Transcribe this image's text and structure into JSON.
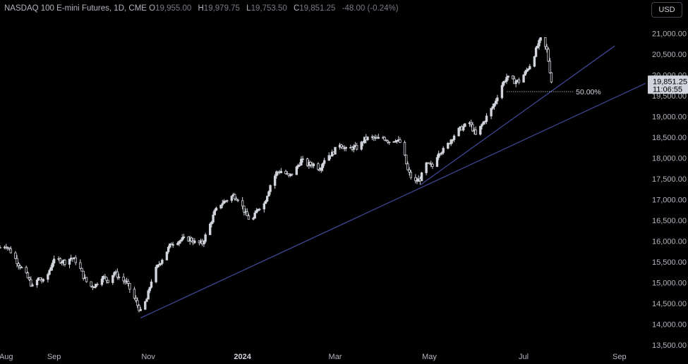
{
  "header": {
    "symbol": "NASDAQ 100 E-mini Futures, 1D, CME",
    "o_label": "O",
    "o_value": "19,955.00",
    "h_label": "H",
    "h_value": "19,979.75",
    "l_label": "L",
    "l_value": "19,753.50",
    "c_label": "C",
    "c_value": "19,851.25",
    "change": "-48.00 (-0.24%)"
  },
  "currency_button": "USD",
  "colors": {
    "background": "#000000",
    "candle": "#d1d4dc",
    "trendline": "#3d4691",
    "price_label": "#d1d4dc"
  },
  "chart_data": {
    "type": "candlestick",
    "title": "",
    "ylim": [
      13500,
      21500
    ],
    "y_ticks": [
      "13,500.00",
      "14,000.00",
      "14,500.00",
      "15,000.00",
      "15,500.00",
      "16,000.00",
      "16,500.00",
      "17,000.00",
      "17,500.00",
      "18,000.00",
      "18,500.00",
      "19,000.00",
      "19,500.00",
      "20,000.00",
      "20,500.00",
      "21,000.00"
    ],
    "y_tick_values": [
      13500,
      14000,
      14500,
      15000,
      15500,
      16000,
      16500,
      17000,
      17500,
      18000,
      18500,
      19000,
      19500,
      20000,
      20500,
      21000
    ],
    "x_ticks": [
      {
        "label": "Aug",
        "date": "2023-08-01"
      },
      {
        "label": "Sep",
        "date": "2023-09-01"
      },
      {
        "label": "Nov",
        "date": "2023-11-01"
      },
      {
        "label": "2024",
        "date": "2024-01-01",
        "bold": true
      },
      {
        "label": "Mar",
        "date": "2024-03-01"
      },
      {
        "label": "May",
        "date": "2024-05-01"
      },
      {
        "label": "Jul",
        "date": "2024-07-01"
      },
      {
        "label": "Sep",
        "date": "2024-09-01"
      }
    ],
    "x_range": [
      "2023-07-28",
      "2024-09-18"
    ],
    "price_path": [
      [
        "2023-07-28",
        15850
      ],
      [
        "2023-08-01",
        15900
      ],
      [
        "2023-08-05",
        15700
      ],
      [
        "2023-08-09",
        15450
      ],
      [
        "2023-08-13",
        15250
      ],
      [
        "2023-08-18",
        14900
      ],
      [
        "2023-08-22",
        15100
      ],
      [
        "2023-08-26",
        15000
      ],
      [
        "2023-08-31",
        15500
      ],
      [
        "2023-09-04",
        15550
      ],
      [
        "2023-09-08",
        15500
      ],
      [
        "2023-09-12",
        15600
      ],
      [
        "2023-09-16",
        15500
      ],
      [
        "2023-09-20",
        15150
      ],
      [
        "2023-09-24",
        14900
      ],
      [
        "2023-09-28",
        14950
      ],
      [
        "2023-10-02",
        15150
      ],
      [
        "2023-10-06",
        15050
      ],
      [
        "2023-10-10",
        15250
      ],
      [
        "2023-10-14",
        15100
      ],
      [
        "2023-10-18",
        15000
      ],
      [
        "2023-10-22",
        14700
      ],
      [
        "2023-10-27",
        14300
      ],
      [
        "2023-10-31",
        14600
      ],
      [
        "2023-11-04",
        15200
      ],
      [
        "2023-11-08",
        15450
      ],
      [
        "2023-11-12",
        15700
      ],
      [
        "2023-11-16",
        15950
      ],
      [
        "2023-11-20",
        16000
      ],
      [
        "2023-11-24",
        16050
      ],
      [
        "2023-11-28",
        16050
      ],
      [
        "2023-12-02",
        15950
      ],
      [
        "2023-12-06",
        15950
      ],
      [
        "2023-12-10",
        16300
      ],
      [
        "2023-12-14",
        16700
      ],
      [
        "2023-12-18",
        16900
      ],
      [
        "2023-12-22",
        17000
      ],
      [
        "2023-12-26",
        17100
      ],
      [
        "2023-12-30",
        17000
      ],
      [
        "2024-01-03",
        16650
      ],
      [
        "2024-01-07",
        16450
      ],
      [
        "2024-01-11",
        16800
      ],
      [
        "2024-01-15",
        16900
      ],
      [
        "2024-01-19",
        17350
      ],
      [
        "2024-01-23",
        17650
      ],
      [
        "2024-01-27",
        17700
      ],
      [
        "2024-01-31",
        17550
      ],
      [
        "2024-02-04",
        17700
      ],
      [
        "2024-02-08",
        17950
      ],
      [
        "2024-02-12",
        17850
      ],
      [
        "2024-02-16",
        17850
      ],
      [
        "2024-02-20",
        17750
      ],
      [
        "2024-02-24",
        18050
      ],
      [
        "2024-02-28",
        18100
      ],
      [
        "2024-03-04",
        18350
      ],
      [
        "2024-03-08",
        18200
      ],
      [
        "2024-03-12",
        18250
      ],
      [
        "2024-03-16",
        18250
      ],
      [
        "2024-03-20",
        18450
      ],
      [
        "2024-03-24",
        18500
      ],
      [
        "2024-03-28",
        18450
      ],
      [
        "2024-04-01",
        18500
      ],
      [
        "2024-04-05",
        18400
      ],
      [
        "2024-04-09",
        18450
      ],
      [
        "2024-04-13",
        18350
      ],
      [
        "2024-04-17",
        17700
      ],
      [
        "2024-04-21",
        17400
      ],
      [
        "2024-04-25",
        17500
      ],
      [
        "2024-04-29",
        17850
      ],
      [
        "2024-05-03",
        17800
      ],
      [
        "2024-05-07",
        18150
      ],
      [
        "2024-05-11",
        18200
      ],
      [
        "2024-05-15",
        18450
      ],
      [
        "2024-05-19",
        18650
      ],
      [
        "2024-05-23",
        18750
      ],
      [
        "2024-05-27",
        18850
      ],
      [
        "2024-05-31",
        18550
      ],
      [
        "2024-06-04",
        18800
      ],
      [
        "2024-06-08",
        19050
      ],
      [
        "2024-06-12",
        19300
      ],
      [
        "2024-06-16",
        19700
      ],
      [
        "2024-06-20",
        19950
      ],
      [
        "2024-06-24",
        19850
      ],
      [
        "2024-06-28",
        19850
      ],
      [
        "2024-07-02",
        20050
      ],
      [
        "2024-07-06",
        20300
      ],
      [
        "2024-07-10",
        20700
      ],
      [
        "2024-07-12",
        20850
      ],
      [
        "2024-07-16",
        20600
      ],
      [
        "2024-07-19",
        19850
      ]
    ],
    "trendlines": [
      {
        "from": [
          "2023-10-27",
          14150
        ],
        "to": [
          "2024-09-18",
          19800
        ]
      },
      {
        "from": [
          "2024-04-25",
          17350
        ],
        "to": [
          "2024-08-29",
          20700
        ]
      }
    ],
    "retracement": {
      "label": "50.00%",
      "value": 19600,
      "from": "2024-06-20",
      "to": "2024-08-02"
    },
    "last_price": {
      "value": 19851.25,
      "label": "19,851.25",
      "countdown": "11:06:55"
    }
  }
}
